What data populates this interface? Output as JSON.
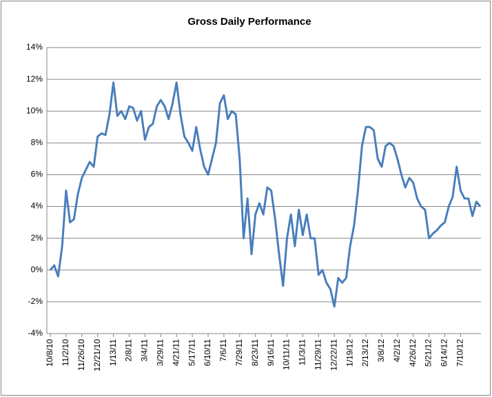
{
  "chart_data": {
    "type": "line",
    "title": "Gross Daily Performance",
    "categories": [
      "10/8/10",
      null,
      null,
      null,
      "11/2/10",
      null,
      null,
      null,
      "11/26/10",
      null,
      null,
      null,
      "12/21/10",
      null,
      null,
      null,
      "1/13/11",
      null,
      null,
      null,
      "2/8/11",
      null,
      null,
      null,
      "3/4/11",
      null,
      null,
      null,
      "3/29/11",
      null,
      null,
      null,
      "4/21/11",
      null,
      null,
      null,
      "5/17/11",
      null,
      null,
      null,
      "6/10/11",
      null,
      null,
      null,
      "7/6/11",
      null,
      null,
      null,
      "7/29/11",
      null,
      null,
      null,
      "8/23/11",
      null,
      null,
      null,
      "9/16/11",
      null,
      null,
      null,
      "10/11/11",
      null,
      null,
      null,
      "11/3/11",
      null,
      null,
      null,
      "11/29/11",
      null,
      null,
      null,
      "12/22/11",
      null,
      null,
      null,
      "1/19/12",
      null,
      null,
      null,
      "2/13/12",
      null,
      null,
      null,
      "3/8/12",
      null,
      null,
      null,
      "4/2/12",
      null,
      null,
      null,
      "4/26/12",
      null,
      null,
      null,
      "5/21/12",
      null,
      null,
      null,
      "6/14/12",
      null,
      null,
      null,
      "7/10/12",
      null,
      null,
      null,
      null,
      null
    ],
    "values": [
      0.0,
      0.3,
      -0.4,
      1.5,
      5.0,
      3.0,
      3.2,
      4.8,
      5.8,
      6.3,
      6.8,
      6.5,
      8.4,
      8.6,
      8.5,
      9.8,
      11.8,
      9.7,
      10.0,
      9.5,
      10.3,
      10.2,
      9.4,
      10.0,
      8.2,
      9.0,
      9.2,
      10.3,
      10.7,
      10.3,
      9.5,
      10.5,
      11.8,
      9.8,
      8.4,
      8.0,
      7.5,
      9.0,
      7.6,
      6.5,
      6.0,
      7.0,
      8.0,
      10.5,
      11.0,
      9.5,
      10.0,
      9.8,
      7.0,
      2.0,
      4.5,
      1.0,
      3.5,
      4.2,
      3.5,
      5.2,
      5.0,
      3.2,
      1.0,
      -1.0,
      2.0,
      3.5,
      1.5,
      3.8,
      2.2,
      3.5,
      2.0,
      2.0,
      -0.3,
      0.0,
      -0.8,
      -1.2,
      -2.3,
      -0.5,
      -0.8,
      -0.5,
      1.5,
      2.8,
      5.0,
      7.8,
      9.0,
      9.0,
      8.8,
      7.0,
      6.5,
      7.8,
      8.0,
      7.8,
      7.0,
      6.0,
      5.2,
      5.8,
      5.5,
      4.5,
      4.0,
      3.8,
      2.0,
      2.3,
      2.5,
      2.8,
      3.0,
      4.0,
      4.6,
      6.5,
      5.0,
      4.5,
      4.5,
      3.4,
      4.3,
      4.0
    ],
    "color": "#4a7ebb",
    "ylim": [
      -4,
      14
    ],
    "yticks": [
      {
        "value": -4,
        "label": "-4%"
      },
      {
        "value": -2,
        "label": "-2%"
      },
      {
        "value": 0,
        "label": "0%"
      },
      {
        "value": 2,
        "label": "2%"
      },
      {
        "value": 4,
        "label": "4%"
      },
      {
        "value": 6,
        "label": "6%"
      },
      {
        "value": 8,
        "label": "8%"
      },
      {
        "value": 10,
        "label": "10%"
      },
      {
        "value": 12,
        "label": "12%"
      },
      {
        "value": 14,
        "label": "14%"
      }
    ],
    "grid": true
  }
}
